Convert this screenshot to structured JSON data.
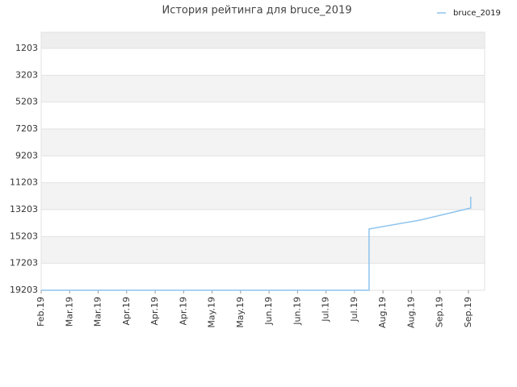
{
  "chart_data": {
    "type": "line",
    "title": "История рейтинга для bruce_2019",
    "series": [
      {
        "name": "bruce_2019",
        "color": "#8ec4ee",
        "x": [
          0,
          11.51,
          11.51,
          13.3,
          15.08,
          15.08
        ],
        "values": [
          19203,
          19203,
          14643,
          13983,
          13083,
          12243
        ]
      }
    ],
    "xlim": [
      0,
      15.57
    ],
    "xticks": [
      {
        "value": 0,
        "label": "Feb.19"
      },
      {
        "value": 1,
        "label": "Mar.19"
      },
      {
        "value": 2,
        "label": "Mar.19"
      },
      {
        "value": 3,
        "label": "Apr.19"
      },
      {
        "value": 4,
        "label": "Apr.19"
      },
      {
        "value": 5,
        "label": "Apr.19"
      },
      {
        "value": 6,
        "label": "May.19"
      },
      {
        "value": 7,
        "label": "May.19"
      },
      {
        "value": 8,
        "label": "Jun.19"
      },
      {
        "value": 9,
        "label": "Jun.19"
      },
      {
        "value": 10,
        "label": "Jul.19"
      },
      {
        "value": 11,
        "label": "Jul.19"
      },
      {
        "value": 12,
        "label": "Aug.19"
      },
      {
        "value": 13,
        "label": "Aug.19"
      },
      {
        "value": 14,
        "label": "Sep.19"
      },
      {
        "value": 15,
        "label": "Sep.19"
      }
    ],
    "ylim": [
      19203,
      3
    ],
    "yticks": [
      1203,
      3203,
      5203,
      7203,
      9203,
      11203,
      13203,
      15203,
      17203,
      19203
    ],
    "grid": true,
    "legend": "top-right"
  }
}
